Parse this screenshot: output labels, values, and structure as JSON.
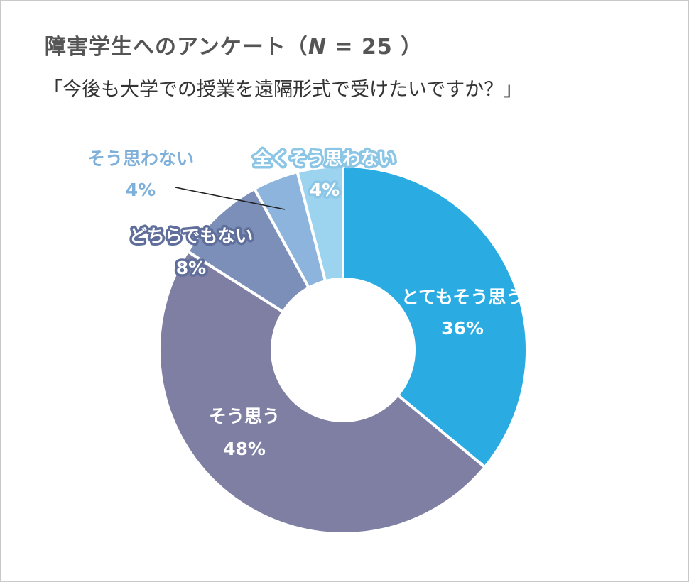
{
  "title": {
    "prefix": "障害学生へのアンケート（",
    "n_label": "N",
    "suffix": " = 25 ）"
  },
  "subtitle": "「今後も大学での授業を遠隔形式で受けたいですか？」",
  "colors": {
    "very_agree": "#2aace2",
    "agree": "#7e7fa3",
    "neutral": "#7b8fb9",
    "disagree": "#8cb4dc",
    "strongly_disagree": "#9cd4f0",
    "separator": "#ffffff",
    "leader_line": "#222222"
  },
  "chart_data": {
    "type": "pie",
    "donut": true,
    "start": "12 o'clock, clockwise",
    "n": 25,
    "unit": "%",
    "slices": [
      {
        "name": "とてもそう思う",
        "value": 36,
        "label": "36%",
        "color": "#2aace2",
        "text_color": "#ffffff",
        "halo": ""
      },
      {
        "name": "そう思う",
        "value": 48,
        "label": "48%",
        "color": "#7e7fa3",
        "text_color": "#ffffff",
        "halo": ""
      },
      {
        "name": "どちらでもない",
        "value": 8,
        "label": "8%",
        "color": "#7b8fb9",
        "text_color": "#ffffff",
        "halo": "#5f6e9a"
      },
      {
        "name": "そう思わない",
        "value": 4,
        "label": "4%",
        "color": "#8cb4dc",
        "text_color": "#7fb0da",
        "halo": ""
      },
      {
        "name": "全くそう思わない",
        "value": 4,
        "label": "4%",
        "color": "#9cd4f0",
        "text_color": "#ffffff",
        "halo": "#8cc6e6"
      }
    ]
  }
}
